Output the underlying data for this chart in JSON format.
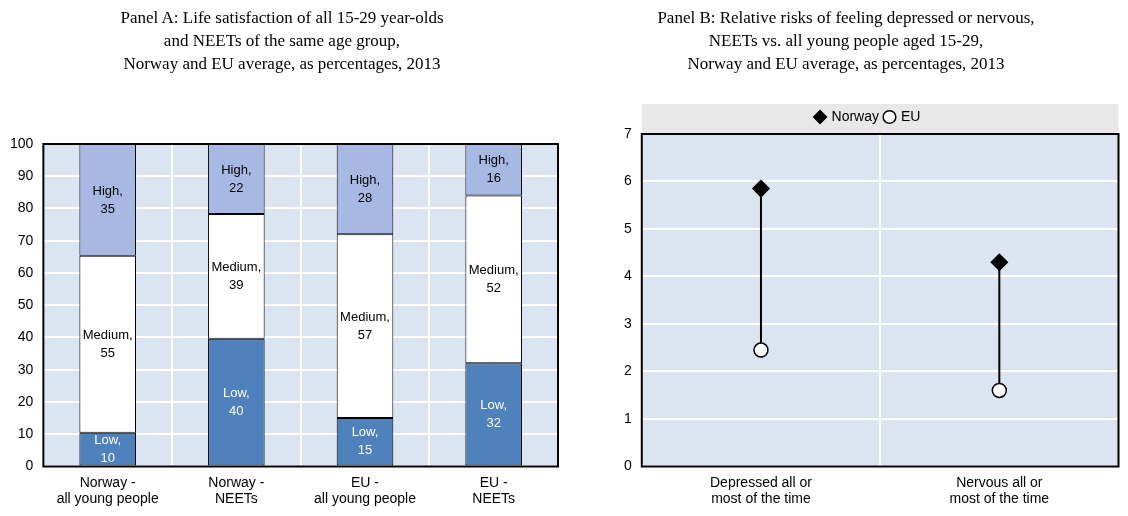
{
  "chart_data": [
    {
      "type": "bar",
      "stacked": true,
      "title": "Panel A: Life satisfaction of all 15-29 year-olds\nand NEETs of the same age group,\nNorway and EU average, as percentages, 2013",
      "categories": [
        "Norway -\nall young people",
        "Norway -\nNEETs",
        "EU -\nall young people",
        "EU -\nNEETs"
      ],
      "series": [
        {
          "name": "Low,",
          "color": "#4f81bd",
          "values": [
            10.4,
            39.6,
            15,
            32
          ],
          "value_labels": [
            "10",
            "40",
            "15",
            "32"
          ]
        },
        {
          "name": "Medium,",
          "color": "#ffffff",
          "values": [
            54.9,
            38.7,
            57,
            52
          ],
          "value_labels": [
            "55",
            "39",
            "57",
            "52"
          ]
        },
        {
          "name": "High,",
          "color": "#a7b9e3",
          "values": [
            34.7,
            21.7,
            28,
            16
          ],
          "value_labels": [
            "35",
            "22",
            "28",
            "16"
          ]
        }
      ],
      "ylim": [
        0,
        100
      ],
      "yticks": [
        0,
        10,
        20,
        30,
        40,
        50,
        60,
        70,
        80,
        90,
        100
      ],
      "grid": true
    },
    {
      "type": "scatter",
      "title": "Panel B: Relative risks of feeling depressed or nervous,\nNEETs vs. all young people aged 15-29,\nNorway and EU average, as percentages, 2013",
      "categories": [
        "Depressed all or\nmost of the time",
        "Nervous all or\nmost of the time"
      ],
      "series": [
        {
          "name": "Norway",
          "color": "#000000",
          "marker": "diamond",
          "values": [
            5.85,
            4.3
          ]
        },
        {
          "name": "EU",
          "color": "#ffffff",
          "marker": "circle",
          "values": [
            2.45,
            1.6
          ]
        }
      ],
      "ylim": [
        0,
        7
      ],
      "yticks": [
        0,
        1,
        2,
        3,
        4,
        5,
        6,
        7
      ],
      "grid": true,
      "legend": "top"
    }
  ]
}
